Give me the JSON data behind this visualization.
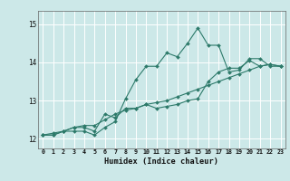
{
  "xlabel": "Humidex (Indice chaleur)",
  "background_color": "#cce8e8",
  "grid_color": "#ffffff",
  "line_color": "#2d7a6a",
  "xlim": [
    -0.5,
    23.5
  ],
  "ylim": [
    11.75,
    15.35
  ],
  "yticks": [
    12,
    13,
    14,
    15
  ],
  "xticks": [
    0,
    1,
    2,
    3,
    4,
    5,
    6,
    7,
    8,
    9,
    10,
    11,
    12,
    13,
    14,
    15,
    16,
    17,
    18,
    19,
    20,
    21,
    22,
    23
  ],
  "series": [
    [
      12.1,
      12.1,
      12.2,
      12.2,
      12.2,
      12.1,
      12.3,
      12.45,
      13.05,
      13.55,
      13.9,
      13.9,
      14.25,
      14.15,
      14.5,
      14.9,
      14.45,
      14.45,
      13.75,
      13.8,
      14.1,
      14.1,
      13.9,
      13.9
    ],
    [
      12.1,
      12.1,
      12.2,
      12.3,
      12.3,
      12.2,
      12.65,
      12.55,
      12.8,
      12.8,
      12.9,
      12.8,
      12.85,
      12.9,
      13.0,
      13.05,
      13.5,
      13.75,
      13.85,
      13.85,
      14.05,
      13.9,
      13.95,
      13.9
    ],
    [
      12.1,
      12.15,
      12.2,
      12.3,
      12.35,
      12.35,
      12.5,
      12.65,
      12.75,
      12.8,
      12.9,
      12.95,
      13.0,
      13.1,
      13.2,
      13.3,
      13.4,
      13.5,
      13.6,
      13.7,
      13.8,
      13.9,
      13.95,
      13.9
    ]
  ]
}
